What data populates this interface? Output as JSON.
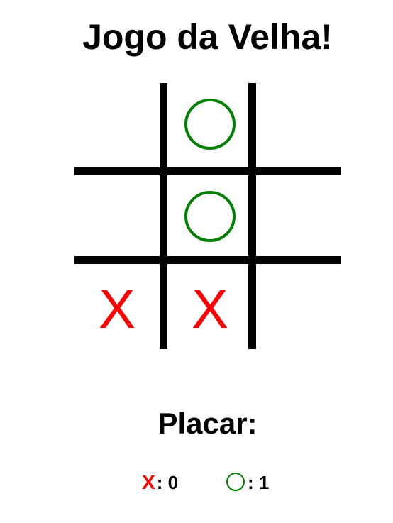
{
  "title": "Jogo da Velha!",
  "board": {
    "cells": [
      "",
      "O",
      "",
      "",
      "O",
      "",
      "X",
      "X",
      ""
    ]
  },
  "colors": {
    "x": "#ff0000",
    "o": "#008000",
    "grid": "#000000"
  },
  "score": {
    "heading": "Placar:",
    "x_symbol": "X",
    "x_value": ": 0",
    "o_value": ": 1"
  }
}
